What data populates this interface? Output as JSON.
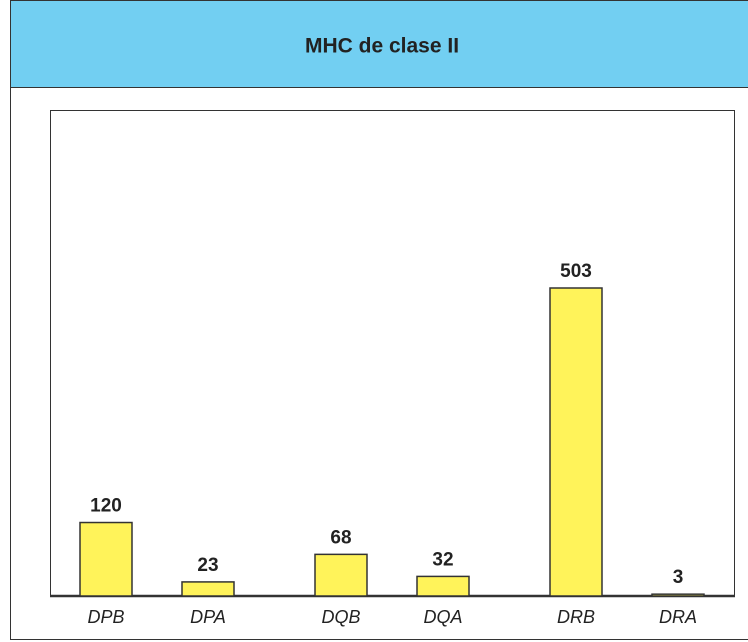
{
  "chart_data": {
    "type": "bar",
    "title": "MHC de clase II",
    "categories": [
      "DPB",
      "DPA",
      "DQB",
      "DQA",
      "DRB",
      "DRA"
    ],
    "values": [
      120,
      23,
      68,
      32,
      503,
      3
    ],
    "color": "#fff35a",
    "header_color": "#72cff2"
  }
}
